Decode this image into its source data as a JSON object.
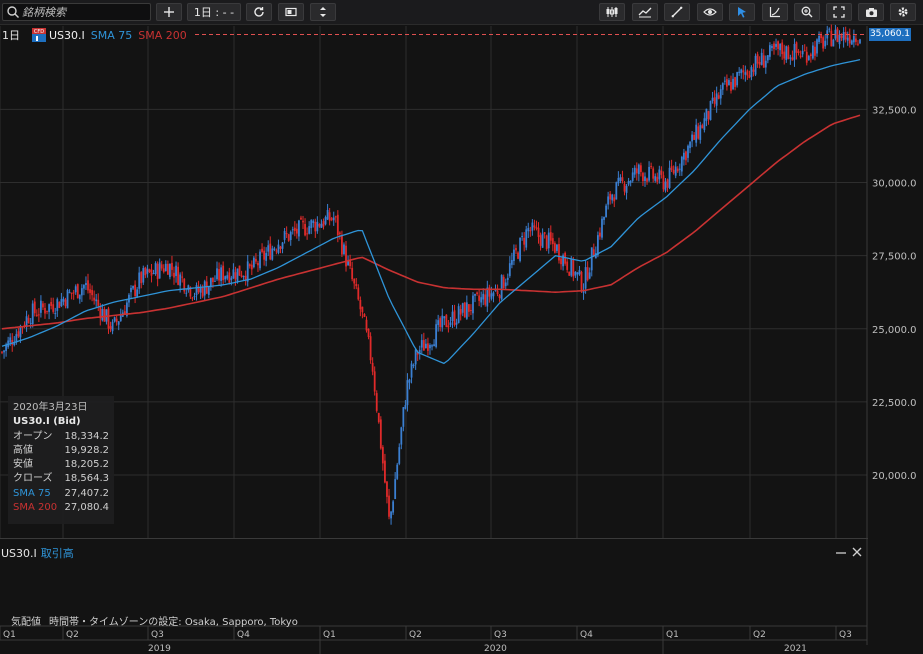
{
  "toolbar": {
    "search_placeholder": "銘柄検索",
    "timeframe_label": "1日 : - -",
    "tools": [
      "add-icon",
      "timeframe",
      "refresh-icon",
      "layout-icon",
      "settings-vertical-icon",
      "candle-type-icon",
      "indicator-icon",
      "draw-line-icon",
      "eye-icon",
      "cursor-icon",
      "measure-icon",
      "zoom-icon",
      "fullscreen-icon",
      "camera-icon",
      "gear-icon"
    ]
  },
  "legend": {
    "timeframe": "1日",
    "badge": "CFD",
    "symbol": "US30.I",
    "sma75": "SMA 75",
    "sma200": "SMA 200"
  },
  "colors": {
    "bg": "#131313",
    "up": "#3b7fd1",
    "down": "#e02a2a",
    "sma75": "#2f94d8",
    "sma200": "#c83232",
    "grid": "#2e2e2e",
    "badge": "#1e6fbf"
  },
  "info": {
    "date": "2020年3月23日",
    "title": "US30.I (Bid)",
    "rows": [
      {
        "label": "オープン",
        "value": "18,334.2"
      },
      {
        "label": "高値",
        "value": "19,928.2"
      },
      {
        "label": "安値",
        "value": "18,205.2"
      },
      {
        "label": "クローズ",
        "value": "18,564.3"
      }
    ],
    "sma75": {
      "label": "SMA 75",
      "value": "27,407.2"
    },
    "sma200": {
      "label": "SMA 200",
      "value": "27,080.4"
    }
  },
  "last_price": "35,060.1",
  "volume_panel": {
    "symbol": "US30.I",
    "indicator": "取引高"
  },
  "footer": {
    "left": "気配値",
    "timezone": "時間帯・タイムゾーンの設定: Osaka, Sapporo, Tokyo"
  },
  "chart_data": {
    "type": "line",
    "title": "US30.I",
    "x": [
      "2019-01",
      "2019-02",
      "2019-03",
      "2019-04",
      "2019-05",
      "2019-06",
      "2019-07",
      "2019-08",
      "2019-09",
      "2019-10",
      "2019-11",
      "2019-12",
      "2020-01",
      "2020-02",
      "2020-03",
      "2020-04",
      "2020-05",
      "2020-06",
      "2020-07",
      "2020-08",
      "2020-09",
      "2020-10",
      "2020-11",
      "2020-12",
      "2021-01",
      "2021-02",
      "2021-03",
      "2021-04",
      "2021-05",
      "2021-06",
      "2021-07",
      "2021-08"
    ],
    "series": [
      {
        "name": "US30.I",
        "values": [
          24200,
          25500,
          25900,
          26500,
          25000,
          26700,
          27200,
          26200,
          26900,
          27000,
          28000,
          28500,
          28800,
          25500,
          21000,
          24200,
          25200,
          25800,
          26400,
          28400,
          27800,
          26500,
          29600,
          30400,
          30000,
          31500,
          33100,
          33900,
          34500,
          34400,
          35000,
          35060
        ]
      },
      {
        "name": "SMA 75",
        "values": [
          24400,
          24700,
          25100,
          25600,
          25900,
          26100,
          26300,
          26400,
          26500,
          26700,
          27100,
          27600,
          28100,
          28400,
          26000,
          24200,
          23800,
          24800,
          25900,
          26700,
          27500,
          27300,
          27800,
          28800,
          29500,
          30400,
          31500,
          32500,
          33300,
          33700,
          34000,
          34200
        ]
      },
      {
        "name": "SMA 200",
        "values": [
          25000,
          25100,
          25200,
          25350,
          25450,
          25550,
          25700,
          25900,
          26100,
          26400,
          26700,
          26950,
          27200,
          27450,
          27000,
          26600,
          26400,
          26350,
          26350,
          26300,
          26250,
          26300,
          26500,
          27100,
          27600,
          28300,
          29100,
          29900,
          30700,
          31400,
          32000,
          32300
        ]
      }
    ],
    "y_ticks": [
      "32,500.0",
      "30,000.0",
      "27,500.0",
      "25,000.0",
      "22,500.0",
      "20,000.0"
    ],
    "ylim": [
      18000,
      35500
    ],
    "quarters": [
      "Q1",
      "Q2",
      "Q3",
      "Q4",
      "Q1",
      "Q2",
      "Q3",
      "Q4",
      "Q1",
      "Q2",
      "Q3"
    ],
    "years": [
      "2019",
      "2020",
      "2021"
    ]
  }
}
